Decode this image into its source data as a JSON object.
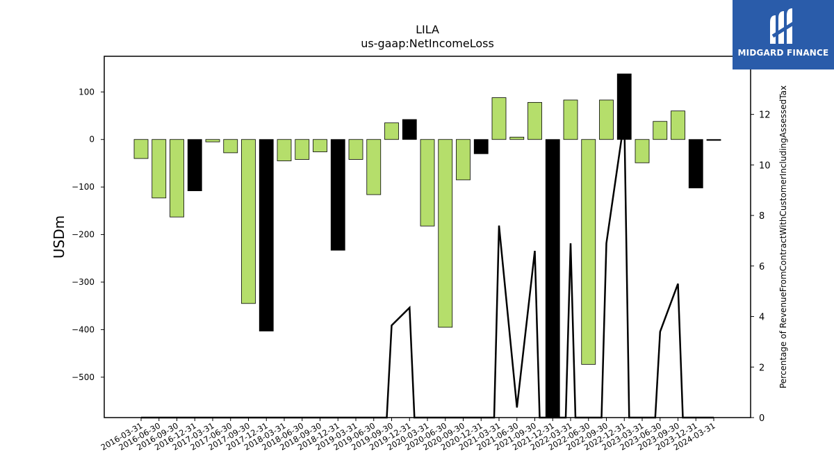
{
  "chart_data": {
    "type": "bar",
    "title": "LILA",
    "subtitle": "us-gaap:NetIncomeLoss",
    "ylabel": "USDm",
    "y2label": "Percentage of RevenueFromContractWithCustomerIncludingAssessedTax",
    "ylim": [
      -585,
      175
    ],
    "y2lim": [
      0,
      14.3
    ],
    "yticks": [
      100,
      0,
      -100,
      -200,
      -300,
      -400,
      -500
    ],
    "y2ticks": [
      0,
      2,
      4,
      6,
      8,
      10,
      12,
      14
    ],
    "categories": [
      "2016-03-31",
      "2016-06-30",
      "2016-09-30",
      "2016-12-31",
      "2017-03-31",
      "2017-06-30",
      "2017-09-30",
      "2017-12-31",
      "2018-03-31",
      "2018-06-30",
      "2018-09-30",
      "2018-12-31",
      "2019-03-31",
      "2019-06-30",
      "2019-09-30",
      "2019-12-31",
      "2020-03-31",
      "2020-06-30",
      "2020-09-30",
      "2020-12-31",
      "2021-03-31",
      "2021-06-30",
      "2021-09-30",
      "2021-12-31",
      "2022-03-31",
      "2022-06-30",
      "2022-09-30",
      "2022-12-31",
      "2023-03-31",
      "2023-06-30",
      "2023-09-30",
      "2023-12-31",
      "2024-03-31"
    ],
    "series": [
      {
        "kind": "bar",
        "values": [
          -40,
          -123,
          -163,
          -108,
          -5,
          -28,
          -345,
          -403,
          -45,
          -42,
          -26,
          -233,
          -42,
          -116,
          35,
          42,
          -182,
          -395,
          -85,
          -30,
          88,
          5,
          78,
          -585,
          83,
          -473,
          83,
          138,
          -49,
          38,
          60,
          -102,
          -2
        ],
        "highlight": [
          false,
          false,
          false,
          true,
          false,
          false,
          false,
          true,
          false,
          false,
          false,
          true,
          false,
          false,
          false,
          true,
          false,
          false,
          false,
          true,
          false,
          false,
          false,
          true,
          false,
          false,
          false,
          true,
          false,
          false,
          false,
          true,
          true
        ]
      },
      {
        "kind": "line",
        "axis": "right",
        "values": [
          0,
          0,
          0,
          0,
          0,
          0,
          0,
          0,
          0,
          0,
          0,
          0,
          0,
          0,
          3.65,
          4.35,
          0,
          0,
          0,
          0,
          7.6,
          0.4,
          6.6,
          0,
          6.9,
          0,
          6.9,
          11.8,
          0,
          3.4,
          5.3,
          0,
          0
        ]
      }
    ],
    "colors": {
      "bar": "#b5de6b",
      "highlight": "#000000",
      "line": "#000000",
      "edge": "#000000"
    },
    "grid": false,
    "legend": "none"
  },
  "brand": {
    "name": "MIDGARD FINANCE",
    "color": "#2a5caa"
  }
}
